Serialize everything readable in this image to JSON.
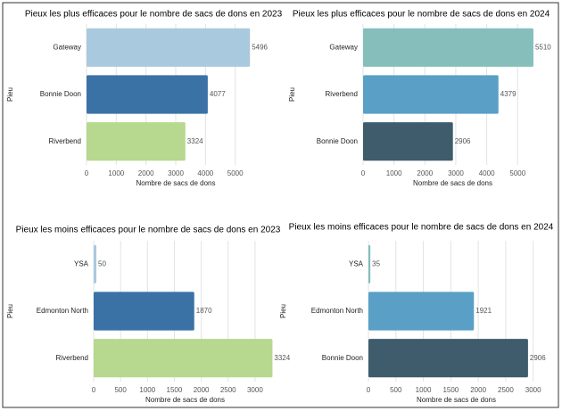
{
  "chart_data": [
    {
      "type": "barh",
      "title": "Pieux les plus efficaces pour le nombre de sacs de dons en 2023",
      "xlabel": "Nombre de sacs de dons",
      "ylabel": "Pieu",
      "categories": [
        "Gateway",
        "Bonnie Doon",
        "Riverbend"
      ],
      "values": [
        5496,
        4077,
        3324
      ],
      "colors": [
        "#a9c9df",
        "#3a72a6",
        "#b6d88f"
      ],
      "xlim": [
        0,
        6000
      ],
      "xticks": [
        0,
        1000,
        2000,
        3000,
        4000,
        5000
      ],
      "grid": true
    },
    {
      "type": "barh",
      "title": "Pieux les plus efficaces pour le nombre de sacs de dons en 2024",
      "xlabel": "Nombre de sacs de dons",
      "ylabel": "Pieu",
      "categories": [
        "Gateway",
        "Riverbend",
        "Bonnie Doon"
      ],
      "values": [
        5510,
        4379,
        2906
      ],
      "colors": [
        "#86bebb",
        "#5a9fc6",
        "#3f5c6c"
      ],
      "xlim": [
        0,
        5800
      ],
      "xticks": [
        0,
        1000,
        2000,
        3000,
        4000,
        5000
      ],
      "grid": true
    },
    {
      "type": "barh",
      "title": "Pieux les moins efficaces pour le nombre de sacs de dons en 2023",
      "xlabel": "Nombre de sacs de dons",
      "ylabel": "Pieu",
      "categories": [
        "YSA",
        "Edmonton North",
        "Riverbend"
      ],
      "values": [
        50,
        1870,
        3324
      ],
      "colors": [
        "#a9c9df",
        "#3a72a6",
        "#b6d88f"
      ],
      "xlim": [
        0,
        3400
      ],
      "xticks": [
        0,
        500,
        1000,
        1500,
        2000,
        2500,
        3000
      ],
      "grid": true
    },
    {
      "type": "barh",
      "title": "Pieux les moins efficaces pour le nombre de sacs de dons en 2024",
      "xlabel": "Nombre de sacs de dons",
      "ylabel": "Pieu",
      "categories": [
        "YSA",
        "Edmonton North",
        "Bonnie Doon"
      ],
      "values": [
        35,
        1921,
        2906
      ],
      "colors": [
        "#86bebb",
        "#5a9fc6",
        "#3f5c6c"
      ],
      "xlim": [
        0,
        3200
      ],
      "xticks": [
        0,
        500,
        1000,
        1500,
        2000,
        2500,
        3000
      ],
      "grid": true
    }
  ]
}
